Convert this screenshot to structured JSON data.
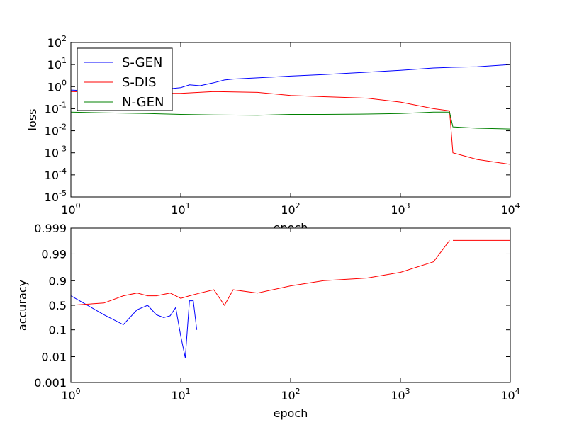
{
  "chart_data": [
    {
      "type": "line",
      "x_scale": "log",
      "y_scale": "log",
      "xlim": [
        1,
        10000
      ],
      "ylim": [
        1e-05,
        100
      ],
      "xlabel": "epoch",
      "ylabel": "loss",
      "x_ticks": [
        {
          "base": "10",
          "exp": "0",
          "value": 1
        },
        {
          "base": "10",
          "exp": "1",
          "value": 10
        },
        {
          "base": "10",
          "exp": "2",
          "value": 100
        },
        {
          "base": "10",
          "exp": "3",
          "value": 1000
        },
        {
          "base": "10",
          "exp": "4",
          "value": 10000
        }
      ],
      "y_ticks": [
        {
          "base": "10",
          "exp": "2",
          "value": 100
        },
        {
          "base": "10",
          "exp": "1",
          "value": 10
        },
        {
          "base": "10",
          "exp": "0",
          "value": 1
        },
        {
          "base": "10",
          "exp": "-1",
          "value": 0.1
        },
        {
          "base": "10",
          "exp": "-2",
          "value": 0.01
        },
        {
          "base": "10",
          "exp": "-3",
          "value": 0.001
        },
        {
          "base": "10",
          "exp": "-4",
          "value": 0.0001
        },
        {
          "base": "10",
          "exp": "-5",
          "value": 1e-05
        }
      ],
      "grid": false,
      "legend_position": "upper-left",
      "series": [
        {
          "name": "S-GEN",
          "color": "#0000ff",
          "x": [
            1,
            2,
            3,
            5,
            8,
            10,
            12,
            15,
            20,
            25,
            30,
            50,
            100,
            200,
            500,
            1000,
            2000,
            3000,
            5000,
            10000
          ],
          "y": [
            0.7,
            0.6,
            0.6,
            0.7,
            0.8,
            0.9,
            1.2,
            1.1,
            1.5,
            2,
            2.2,
            2.5,
            3,
            3.5,
            4.5,
            5.5,
            7,
            7.5,
            8,
            10
          ]
        },
        {
          "name": "S-DIS",
          "color": "#ff0000",
          "x": [
            1,
            2,
            5,
            10,
            20,
            50,
            100,
            200,
            500,
            1000,
            2000,
            2800,
            3000,
            5000,
            10000
          ],
          "y": [
            0.6,
            0.55,
            0.5,
            0.5,
            0.6,
            0.55,
            0.4,
            0.35,
            0.3,
            0.2,
            0.1,
            0.08,
            0.001,
            0.0005,
            0.0003
          ]
        },
        {
          "name": "N-GEN",
          "color": "#008000",
          "x": [
            1,
            2,
            5,
            10,
            20,
            50,
            100,
            200,
            500,
            1000,
            2000,
            2800,
            3000,
            5000,
            10000
          ],
          "y": [
            0.07,
            0.065,
            0.06,
            0.055,
            0.052,
            0.05,
            0.055,
            0.055,
            0.057,
            0.06,
            0.07,
            0.07,
            0.015,
            0.013,
            0.012
          ]
        }
      ]
    },
    {
      "type": "line",
      "x_scale": "log",
      "y_scale": "logit",
      "xlim": [
        1,
        10000
      ],
      "ylim": [
        0.001,
        0.999
      ],
      "xlabel": "epoch",
      "ylabel": "accuracy",
      "x_ticks": [
        {
          "base": "10",
          "exp": "0",
          "value": 1
        },
        {
          "base": "10",
          "exp": "1",
          "value": 10
        },
        {
          "base": "10",
          "exp": "2",
          "value": 100
        },
        {
          "base": "10",
          "exp": "3",
          "value": 1000
        },
        {
          "base": "10",
          "exp": "4",
          "value": 10000
        }
      ],
      "y_ticks": [
        {
          "label": "0.999",
          "value": 0.999
        },
        {
          "label": "0.99",
          "value": 0.99
        },
        {
          "label": "0.9",
          "value": 0.9
        },
        {
          "label": "0.5",
          "value": 0.5
        },
        {
          "label": "0.1",
          "value": 0.1
        },
        {
          "label": "0.01",
          "value": 0.01
        },
        {
          "label": "0.001",
          "value": 0.001
        }
      ],
      "grid": false,
      "series": [
        {
          "color": "#0000ff",
          "x": [
            1,
            2,
            3,
            4,
            5,
            6,
            7,
            8,
            9,
            10,
            11,
            12,
            13,
            14
          ],
          "y": [
            0.7,
            0.3,
            0.15,
            0.4,
            0.5,
            0.3,
            0.25,
            0.28,
            0.45,
            0.06,
            0.009,
            0.6,
            0.6,
            0.1
          ]
        },
        {
          "color": "#ff0000",
          "x": [
            1,
            2,
            3,
            4,
            5,
            6,
            8,
            10,
            12,
            15,
            20,
            25,
            30,
            50,
            100,
            200,
            500,
            1000,
            2000,
            2800
          ],
          "y": [
            0.5,
            0.55,
            0.7,
            0.75,
            0.7,
            0.7,
            0.75,
            0.65,
            0.7,
            0.75,
            0.8,
            0.5,
            0.8,
            0.75,
            0.85,
            0.9,
            0.92,
            0.95,
            0.98,
            0.997
          ]
        },
        {
          "color": "#ff0000",
          "x": [
            3000,
            5000,
            10000
          ],
          "y": [
            0.997,
            0.997,
            0.997
          ]
        }
      ]
    }
  ]
}
